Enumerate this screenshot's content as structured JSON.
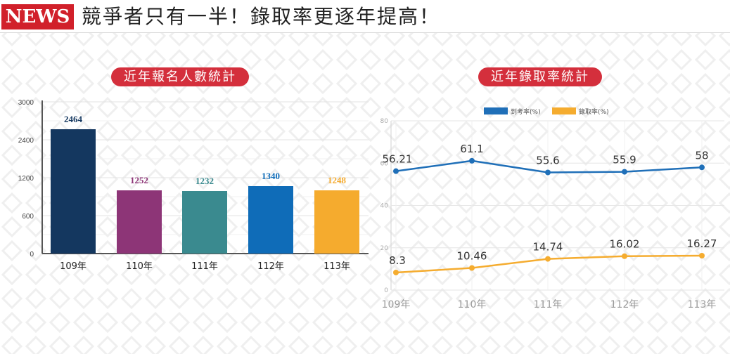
{
  "header": {
    "badge": "NEWS",
    "headline": "競爭者只有一半！錄取率更逐年提高！"
  },
  "left_chart_title": "近年報名人數統計",
  "right_chart_title": "近年錄取率統計",
  "colors": {
    "badge_red": "#d1202a",
    "pill_red": "#d42f3c",
    "bar_109": "#14375f",
    "bar_110": "#8d3577",
    "bar_111": "#3a8a8f",
    "bar_112": "#0f6cb8",
    "bar_113": "#f5ab2e",
    "line_blue": "#1f6fb8",
    "line_orange": "#f5ac2f"
  },
  "chart_data": [
    {
      "type": "bar",
      "title": "近年報名人數統計",
      "categories": [
        "109年",
        "110年",
        "111年",
        "112年",
        "113年"
      ],
      "values": [
        2464,
        1252,
        1232,
        1340,
        1248
      ],
      "value_labels": [
        "2464",
        "1252",
        "1232",
        "1340",
        "1248"
      ],
      "yticks": [
        "0",
        "600",
        "1200",
        "2400",
        "3000"
      ],
      "ylim": [
        0,
        3000
      ],
      "grid": true
    },
    {
      "type": "line",
      "title": "近年錄取率統計",
      "categories": [
        "109年",
        "110年",
        "111年",
        "112年",
        "113年"
      ],
      "series": [
        {
          "name": "到考率(%)",
          "values": [
            56.21,
            61.1,
            55.6,
            55.9,
            58
          ],
          "labels": [
            "56.21",
            "61.1",
            "55.6",
            "55.9",
            "58"
          ]
        },
        {
          "name": "錄取率(%)",
          "values": [
            8.3,
            10.46,
            14.74,
            16.02,
            16.27
          ],
          "labels": [
            "8.3",
            "10.46",
            "14.74",
            "16.02",
            "16.27"
          ]
        }
      ],
      "yticks": [
        "0",
        "20",
        "40",
        "60",
        "80"
      ],
      "ylim": [
        0,
        80
      ],
      "legend": "top-center",
      "grid": true
    }
  ]
}
